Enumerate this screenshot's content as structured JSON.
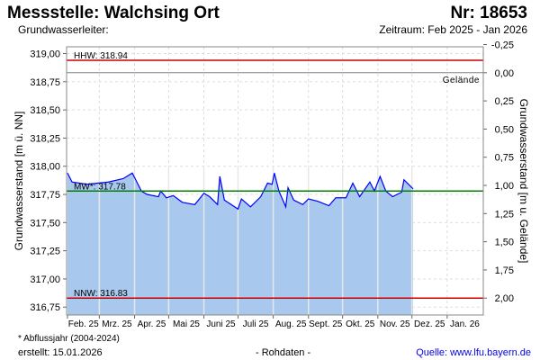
{
  "header": {
    "title": "Messstelle: Walchsing Ort",
    "number": "Nr: 18653",
    "subtitle": "Grundwasserleiter:",
    "period": "Zeitraum: Feb 2025 - Jan 2026"
  },
  "footer": {
    "note": "* Abflussjahr (2004-2024)",
    "created": "erstellt:  15.01.2026",
    "raw": "- Rohdaten -",
    "source": "Quelle: www.lfu.bayern.de"
  },
  "colors": {
    "line": "#0000ff",
    "fill": "#a8c8ee",
    "hhw": "#cc0000",
    "nnw": "#cc0000",
    "mw": "#008000",
    "ground": "#808080"
  },
  "chart_data": {
    "type": "area",
    "xlabel": "",
    "ylabel": "Grundwasserstand [m ü. NN]",
    "y2label": "Grundwasserstand [m u. Gelände]",
    "ylim": [
      316.68,
      319.06
    ],
    "y_ticks": [
      "319,00",
      "318,75",
      "318,50",
      "318,25",
      "318,00",
      "317,75",
      "317,50",
      "317,25",
      "317,00",
      "316,75"
    ],
    "y_tick_values": [
      319.0,
      318.75,
      318.5,
      318.25,
      318.0,
      317.75,
      317.5,
      317.25,
      317.0,
      316.75
    ],
    "y2_ticks": [
      "-0,25",
      "0,00",
      "0,25",
      "0,50",
      "0,75",
      "1,00",
      "1,25",
      "1,50",
      "1,75",
      "2,00"
    ],
    "y2_tick_values": [
      -0.25,
      0,
      0.25,
      0.5,
      0.75,
      1.0,
      1.25,
      1.5,
      1.75,
      2.0
    ],
    "ground_level": 318.83,
    "ground_label": "Gelände",
    "x_unit": "days since 2025-02-01",
    "xlim": [
      0,
      365
    ],
    "x_ticks": [
      "Feb. 25",
      "Mrz. 25",
      "Apr. 25",
      "Mai 25",
      "Juni 25",
      "Juli 25",
      "Aug. 25",
      "Sept. 25",
      "Okt. 25",
      "Nov. 25",
      "Dez. 25",
      "Jan. 26"
    ],
    "x_tick_values": [
      0,
      28,
      59,
      89,
      120,
      150,
      181,
      212,
      242,
      273,
      303,
      334
    ],
    "reference_lines": [
      {
        "name": "HHW",
        "label": "HHW: 318.94",
        "value": 318.94
      },
      {
        "name": "MW",
        "label": "MW*: 317.78",
        "value": 317.78
      },
      {
        "name": "NNW",
        "label": "NNW: 316.83",
        "value": 316.83
      }
    ],
    "series": [
      {
        "name": "Grundwasserstand",
        "x": [
          0,
          4,
          17,
          36,
          49,
          57,
          61,
          65,
          70,
          80,
          82,
          87,
          93,
          101,
          112,
          120,
          125,
          132,
          134,
          138,
          150,
          153,
          161,
          170,
          176,
          180,
          182,
          186,
          192,
          194,
          199,
          207,
          212,
          220,
          230,
          236,
          245,
          251,
          257,
          266,
          270,
          275,
          280,
          286,
          294,
          296,
          304
        ],
        "y": [
          317.94,
          317.86,
          317.84,
          317.86,
          317.89,
          317.94,
          317.86,
          317.78,
          317.75,
          317.73,
          317.78,
          317.72,
          317.74,
          317.68,
          317.66,
          317.76,
          317.73,
          317.66,
          317.91,
          317.7,
          317.62,
          317.71,
          317.64,
          317.73,
          317.85,
          317.84,
          317.94,
          317.78,
          317.64,
          317.81,
          317.7,
          317.66,
          317.71,
          317.69,
          317.65,
          317.72,
          317.72,
          317.85,
          317.73,
          317.86,
          317.78,
          317.91,
          317.78,
          317.73,
          317.77,
          317.88,
          317.8
        ]
      }
    ]
  }
}
